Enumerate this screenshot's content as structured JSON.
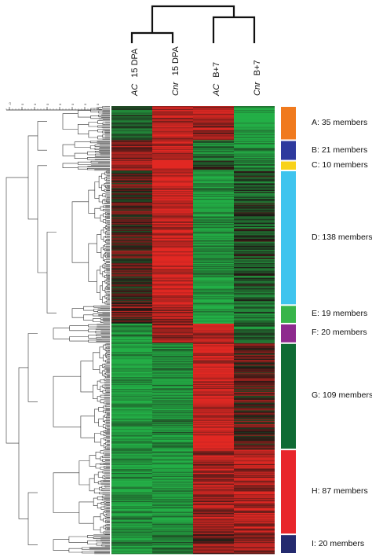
{
  "chart_data": {
    "type": "heatmap",
    "title": "",
    "columns": [
      {
        "genotype": "AC",
        "stage": "15 DPA"
      },
      {
        "genotype": "Cnr",
        "stage": "15 DPA"
      },
      {
        "genotype": "AC",
        "stage": "B+7"
      },
      {
        "genotype": "Cnr",
        "stage": "B+7"
      }
    ],
    "column_dendrogram": [
      [
        "15 DPA AC",
        "15 DPA Cnr"
      ],
      [
        "B+7 AC",
        "B+7 Cnr"
      ]
    ],
    "scale_ticks": [
      "-0",
      "0",
      "0",
      "0",
      "0",
      "0",
      "0",
      "0"
    ],
    "color_scale": {
      "low": "#1fa33a",
      "mid": "#1a1a1a",
      "high": "#d8201e"
    },
    "clusters": [
      {
        "id": "A",
        "label": "A: 35 members",
        "members": 35,
        "color": "#f07a1e",
        "pattern": [
          -0.4,
          0.7,
          0.6,
          -1.0
        ]
      },
      {
        "id": "B",
        "label": "B: 21 members",
        "members": 21,
        "color": "#2e3a9e",
        "pattern": [
          0.5,
          0.8,
          -0.6,
          -0.8
        ]
      },
      {
        "id": "C",
        "label": "C: 10 members",
        "members": 10,
        "color": "#f8d21a",
        "pattern": [
          0.6,
          0.9,
          -0.2,
          -0.6
        ]
      },
      {
        "id": "D",
        "label": "D: 138 members",
        "members": 138,
        "color": "#3fc4ee",
        "pattern": [
          0.1,
          0.9,
          -0.8,
          -0.3
        ]
      },
      {
        "id": "E",
        "label": "E: 19 members",
        "members": 19,
        "color": "#38b54a",
        "pattern": [
          0.3,
          0.6,
          -0.9,
          -0.5
        ]
      },
      {
        "id": "F",
        "label": "F: 20 members",
        "members": 20,
        "color": "#8e2a8e",
        "pattern": [
          -0.8,
          0.6,
          0.7,
          -0.5
        ]
      },
      {
        "id": "G",
        "label": "G: 109 members",
        "members": 109,
        "color": "#0f6b34",
        "pattern": [
          -0.9,
          -0.7,
          0.9,
          0.2
        ]
      },
      {
        "id": "H",
        "label": "H: 87 members",
        "members": 87,
        "color": "#e8262b",
        "pattern": [
          -0.8,
          -0.8,
          0.6,
          0.7
        ]
      },
      {
        "id": "I",
        "label": "I: 20 members",
        "members": 20,
        "color": "#242a6e",
        "pattern": [
          -0.7,
          -0.6,
          0.4,
          0.5
        ]
      }
    ]
  }
}
